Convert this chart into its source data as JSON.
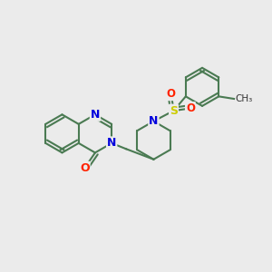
{
  "background_color": "#ebebeb",
  "bond_color": "#4a7a52",
  "bond_width": 1.5,
  "atom_colors": {
    "N": "#0000dd",
    "O": "#ff2200",
    "S": "#cccc00",
    "C": "#000000"
  },
  "ring_r": 0.4,
  "xlim": [
    -2.8,
    2.8
  ],
  "ylim": [
    -2.8,
    2.8
  ]
}
